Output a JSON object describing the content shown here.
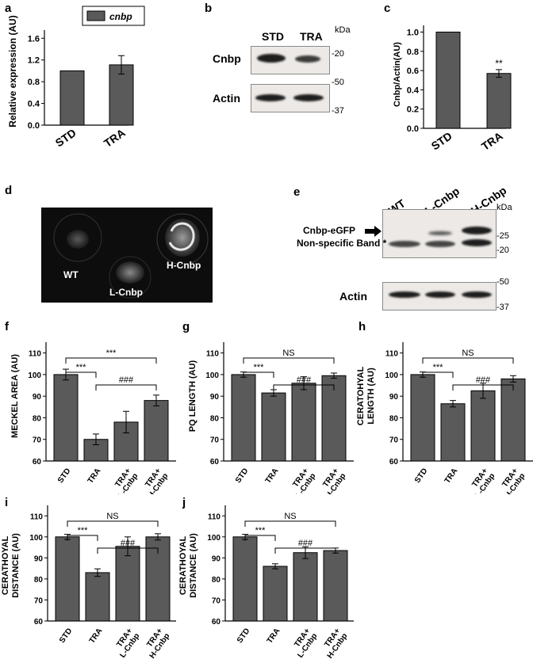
{
  "figure": {
    "panel_labels": {
      "a": "a",
      "b": "b",
      "c": "c",
      "d": "d",
      "e": "e",
      "f": "f",
      "g": "g",
      "h": "h",
      "i": "i",
      "j": "j"
    }
  },
  "panel_b": {
    "lanes": [
      "STD",
      "TRA"
    ],
    "unit": "kDa",
    "rows": [
      {
        "label": "Cnbp",
        "markers": [
          "-20",
          "-50"
        ]
      },
      {
        "label": "Actin",
        "markers": [
          "-37"
        ]
      }
    ]
  },
  "panel_d": {
    "labels": [
      "WT",
      "L-Cnbp",
      "H-Cnbp"
    ]
  },
  "panel_e": {
    "lanes": [
      "WT",
      "L-Cnbp",
      "H-Cnbp"
    ],
    "unit": "kDa",
    "band_labels": [
      "Cnbp-eGFP",
      "Non-specific Band *"
    ],
    "markers_top": [
      "-25",
      "-20"
    ],
    "markers_bottom": [
      "-50",
      "-37"
    ],
    "actin_label": "Actin"
  },
  "chart_data": [
    {
      "id": "a",
      "type": "bar",
      "categories": [
        "STD",
        "TRA"
      ],
      "values": [
        1.0,
        1.11
      ],
      "errors": [
        0,
        0.17
      ],
      "ylabel": "Relative expression (AU)",
      "yticks": [
        "0.0",
        "0.4",
        "0.8",
        "1.2",
        "1.6"
      ],
      "ylim": [
        0,
        1.75
      ],
      "tick_values": [
        0,
        0.4,
        0.8,
        1.2,
        1.6
      ],
      "legend": "cnbp",
      "significance": [],
      "brackets": []
    },
    {
      "id": "c",
      "type": "bar",
      "categories": [
        "STD",
        "TRA"
      ],
      "values": [
        1.0,
        0.57
      ],
      "errors": [
        0,
        0.04
      ],
      "ylabel": "Cnbp/Actin(AU)",
      "yticks": [
        "0.0",
        "0.2",
        "0.4",
        "0.6",
        "0.8",
        "1.0"
      ],
      "ylim": [
        0,
        1.07
      ],
      "tick_values": [
        0,
        0.2,
        0.4,
        0.6,
        0.8,
        1.0
      ],
      "significance": [
        "",
        "**"
      ],
      "brackets": []
    },
    {
      "id": "f",
      "type": "bar",
      "categories": [
        "STD",
        "TRA",
        "TRA+ L-Cnbp",
        "TRA+ H-Cnbp"
      ],
      "values": [
        100,
        70,
        78,
        88
      ],
      "errors": [
        2.5,
        2.5,
        5,
        2.5
      ],
      "ylabel": "MECKEL AREA (AU)",
      "yticks": [
        "60",
        "70",
        "80",
        "90",
        "100",
        "110"
      ],
      "ylim": [
        60,
        115
      ],
      "tick_values": [
        60,
        70,
        80,
        90,
        100,
        110
      ],
      "significance": [],
      "brackets": [
        {
          "from": 0,
          "to": 1,
          "label": "***"
        },
        {
          "from": 1,
          "to": 3,
          "label": "###"
        },
        {
          "from": 0,
          "to": 3,
          "label": "***"
        }
      ]
    },
    {
      "id": "g",
      "type": "bar",
      "categories": [
        "STD",
        "TRA",
        "TRA+ L-Cnbp",
        "TRA+ H-Cnbp"
      ],
      "values": [
        100,
        91.5,
        96,
        99.5
      ],
      "errors": [
        1.2,
        1.5,
        3,
        1.2
      ],
      "ylabel": "PQ LENGTH (AU)",
      "yticks": [
        "60",
        "70",
        "80",
        "90",
        "100",
        "110"
      ],
      "ylim": [
        60,
        115
      ],
      "tick_values": [
        60,
        70,
        80,
        90,
        100,
        110
      ],
      "significance": [],
      "brackets": [
        {
          "from": 0,
          "to": 1,
          "label": "***"
        },
        {
          "from": 1,
          "to": 3,
          "label": "###"
        },
        {
          "from": 0,
          "to": 3,
          "label": "NS"
        }
      ]
    },
    {
      "id": "h",
      "type": "bar",
      "categories": [
        "STD",
        "TRA",
        "TRA+ L-Cnbp",
        "TRA+ H-Cnbp"
      ],
      "values": [
        100,
        86.5,
        92.5,
        98
      ],
      "errors": [
        1.2,
        1.5,
        3.5,
        1.5
      ],
      "ylabel": "CERATOHYAL LENGTH (AU)",
      "yticks": [
        "60",
        "70",
        "80",
        "90",
        "100",
        "110"
      ],
      "ylim": [
        60,
        115
      ],
      "tick_values": [
        60,
        70,
        80,
        90,
        100,
        110
      ],
      "significance": [],
      "brackets": [
        {
          "from": 0,
          "to": 1,
          "label": "***"
        },
        {
          "from": 1,
          "to": 3,
          "label": "###"
        },
        {
          "from": 0,
          "to": 3,
          "label": "NS"
        }
      ]
    },
    {
      "id": "i",
      "type": "bar",
      "categories": [
        "STD",
        "TRA",
        "TRA+ L-Cnbp",
        "TRA+ H-Cnbp"
      ],
      "values": [
        100,
        83,
        95.5,
        100
      ],
      "errors": [
        1.2,
        1.8,
        4.5,
        1.5
      ],
      "ylabel": "CERATHOYAL DISTANCE (AU)",
      "yticks": [
        "60",
        "70",
        "80",
        "90",
        "100",
        "110"
      ],
      "ylim": [
        60,
        115
      ],
      "tick_values": [
        60,
        70,
        80,
        90,
        100,
        110
      ],
      "significance": [],
      "brackets": [
        {
          "from": 0,
          "to": 1,
          "label": "***"
        },
        {
          "from": 1,
          "to": 3,
          "label": "###"
        },
        {
          "from": 0,
          "to": 3,
          "label": "NS"
        }
      ]
    },
    {
      "id": "j",
      "type": "bar",
      "categories": [
        "STD",
        "TRA",
        "TRA+ L-Cnbp",
        "TRA+ H-Cnbp"
      ],
      "values": [
        100,
        86,
        92.5,
        93.5
      ],
      "errors": [
        1.2,
        1.2,
        2.8,
        1.2
      ],
      "ylabel": "CERATHOYAL DISTANCE (AU)",
      "yticks": [
        "60",
        "70",
        "80",
        "90",
        "100",
        "110"
      ],
      "ylim": [
        60,
        115
      ],
      "tick_values": [
        60,
        70,
        80,
        90,
        100,
        110
      ],
      "significance": [],
      "brackets": [
        {
          "from": 0,
          "to": 1,
          "label": "***"
        },
        {
          "from": 1,
          "to": 3,
          "label": "###"
        },
        {
          "from": 0,
          "to": 3,
          "label": "NS"
        }
      ]
    }
  ],
  "style": {
    "bar_color": "#5a5a5a",
    "bar_edge": "#000000"
  }
}
